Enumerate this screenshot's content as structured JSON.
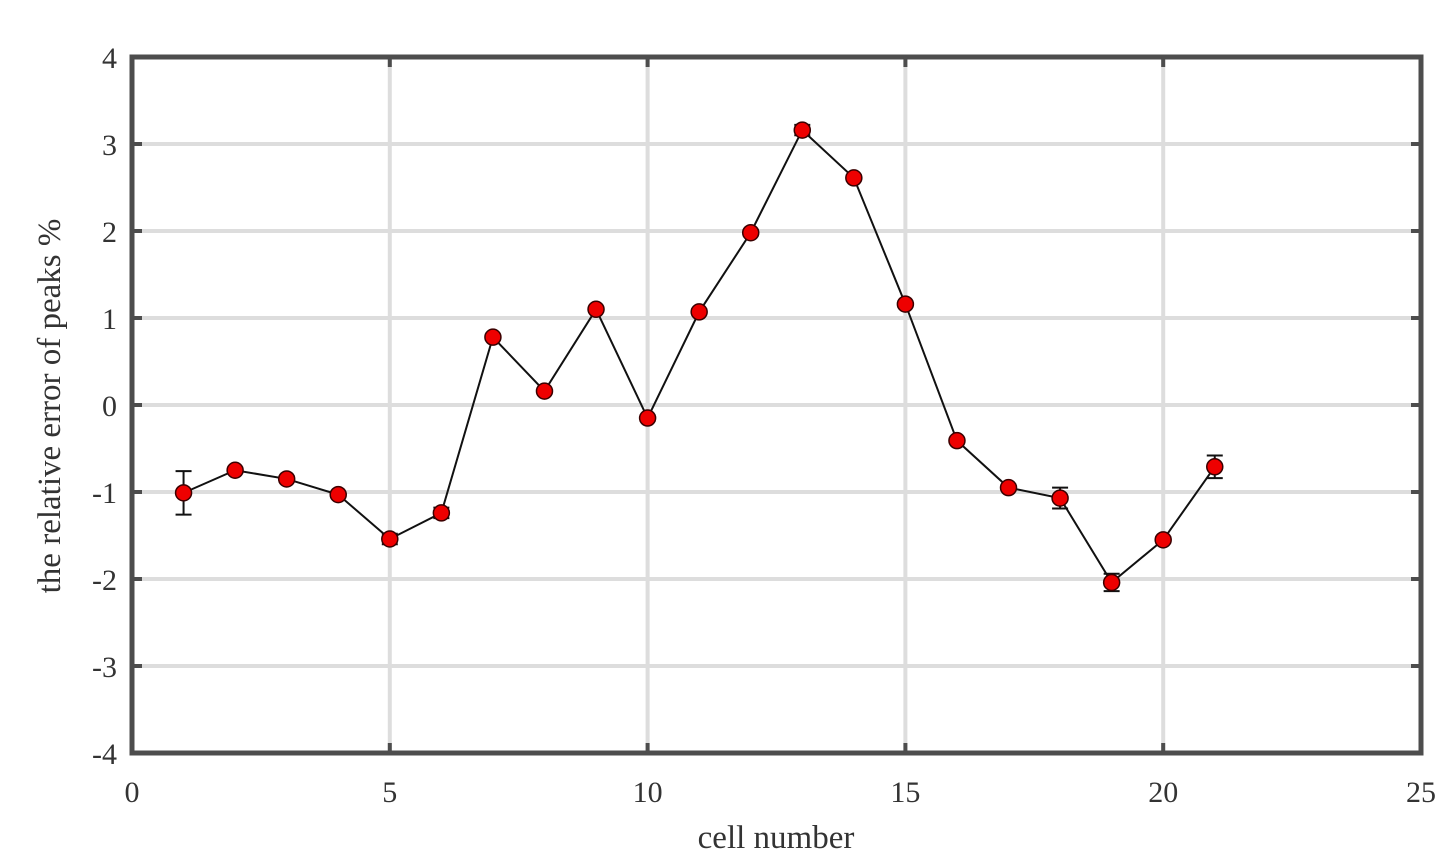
{
  "chart_data": {
    "type": "scatter",
    "xlabel": "cell number",
    "ylabel": "the relative error of peaks %",
    "xlim": [
      0,
      25
    ],
    "ylim": [
      -4,
      4
    ],
    "xticks": [
      "0",
      "5",
      "10",
      "15",
      "20",
      "25"
    ],
    "yticks": [
      "4",
      "3",
      "2",
      "1",
      "0",
      "-1",
      "-2",
      "-3",
      "-4"
    ],
    "grid": true,
    "series": [
      {
        "x": [
          1,
          2,
          3,
          4,
          5,
          6,
          7,
          8,
          9,
          10,
          11,
          12,
          13,
          14,
          15,
          16,
          17,
          18,
          19,
          20,
          21
        ],
        "y": [
          -1.01,
          -0.75,
          -0.85,
          -1.03,
          -1.54,
          -1.24,
          0.78,
          0.16,
          1.1,
          -0.15,
          1.07,
          1.98,
          3.16,
          2.61,
          1.16,
          -0.41,
          -0.95,
          -1.07,
          -2.04,
          -1.55,
          -0.71
        ],
        "err": [
          0.25,
          0.03,
          0.03,
          0.03,
          0.06,
          0.06,
          0.03,
          0.03,
          0.03,
          0.03,
          0.03,
          0.03,
          0.06,
          0.03,
          0.03,
          0.03,
          0.03,
          0.12,
          0.1,
          0.03,
          0.13
        ],
        "marker_color": "#ee0000",
        "line_color": "#111111",
        "errorbar_color": "#111111"
      }
    ],
    "colors": {
      "grid": "#dddddd",
      "axis": "#4d4d4d",
      "text": "#333333"
    }
  }
}
